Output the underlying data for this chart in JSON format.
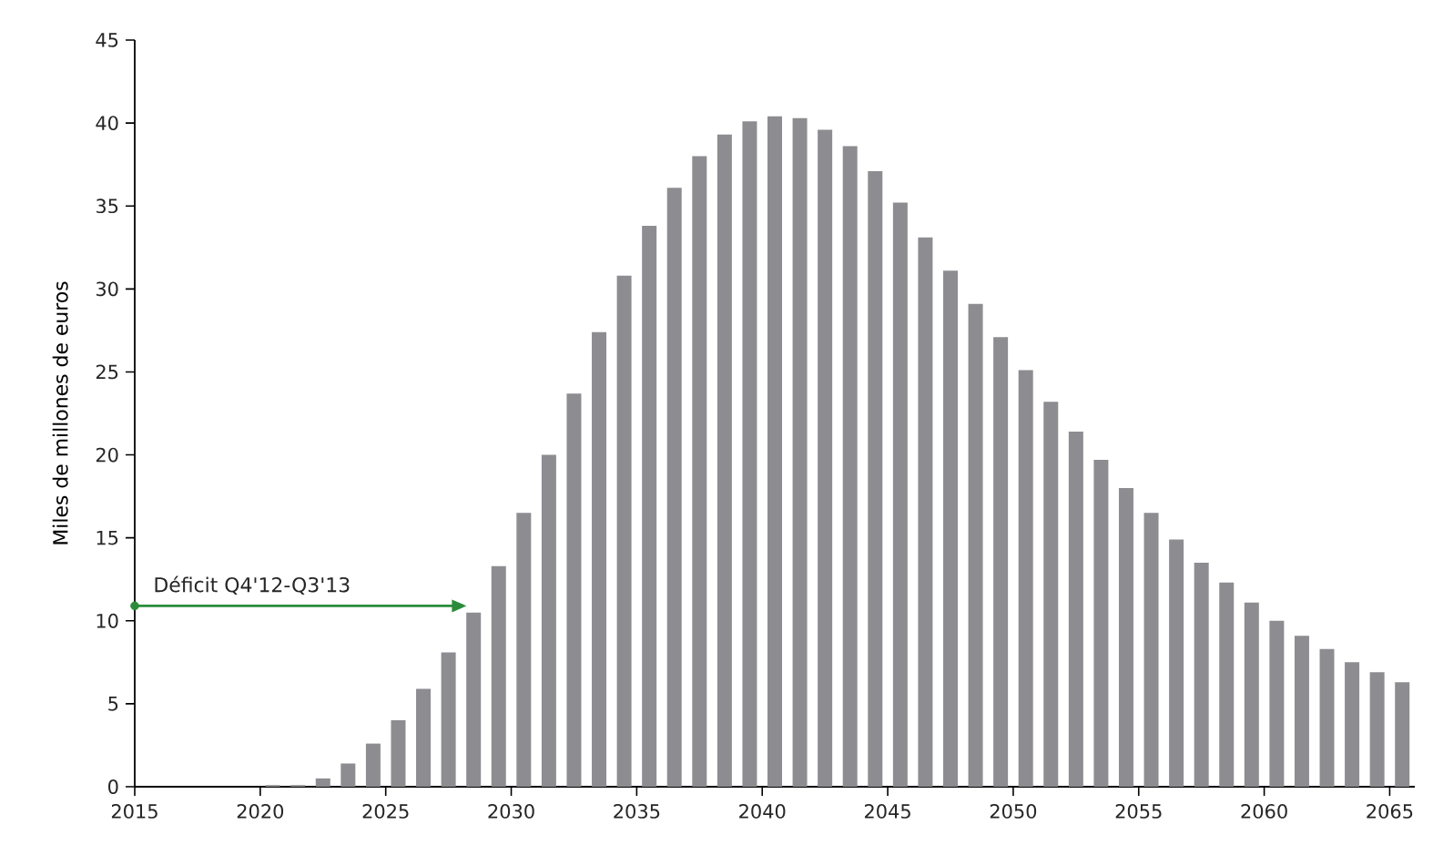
{
  "chart_data": {
    "type": "bar",
    "ylabel": "Miles de millones de euros",
    "x": [
      2020.5,
      2021.5,
      2022.5,
      2023.5,
      2024.5,
      2025.5,
      2026.5,
      2027.5,
      2028.5,
      2029.5,
      2030.5,
      2031.5,
      2032.5,
      2033.5,
      2034.5,
      2035.5,
      2036.5,
      2037.5,
      2038.5,
      2039.5,
      2040.5,
      2041.5,
      2042.5,
      2043.5,
      2044.5,
      2045.5,
      2046.5,
      2047.5,
      2048.5,
      2049.5,
      2050.5,
      2051.5,
      2052.5,
      2053.5,
      2054.5,
      2055.5,
      2056.5,
      2057.5,
      2058.5,
      2059.5,
      2060.5,
      2061.5,
      2062.5,
      2063.5,
      2064.5,
      2065.5
    ],
    "series": [
      {
        "color": "#8c8c91",
        "values": [
          0.1,
          0.1,
          0.5,
          1.4,
          2.6,
          4.0,
          5.9,
          8.1,
          10.5,
          13.3,
          16.5,
          20.0,
          23.7,
          27.4,
          30.8,
          33.8,
          36.1,
          38.0,
          39.3,
          40.1,
          40.4,
          40.3,
          39.6,
          38.6,
          37.1,
          35.2,
          33.1,
          31.1,
          29.1,
          27.1,
          25.1,
          23.2,
          21.4,
          19.7,
          18.0,
          16.5,
          14.9,
          13.5,
          12.3,
          11.1,
          10.0,
          9.1,
          8.3,
          7.5,
          6.9,
          6.3
        ]
      },
      {
        "type": "line",
        "color": "#2a8c3a",
        "marker": "circle",
        "x": [
          2015,
          2028
        ],
        "values": [
          10.9,
          10.9
        ]
      }
    ],
    "annotations": [
      {
        "text": "Déficit Q4'12-Q3'13",
        "x": 2015,
        "y": 10.9
      }
    ],
    "xlim": [
      2015,
      2066
    ],
    "xticks": [
      2015,
      2020,
      2025,
      2030,
      2035,
      2040,
      2045,
      2050,
      2055,
      2060,
      2065
    ],
    "ylim": [
      0,
      45
    ],
    "yticks": [
      0,
      5,
      10,
      15,
      20,
      25,
      30,
      35,
      40,
      45
    ],
    "grid": false
  }
}
